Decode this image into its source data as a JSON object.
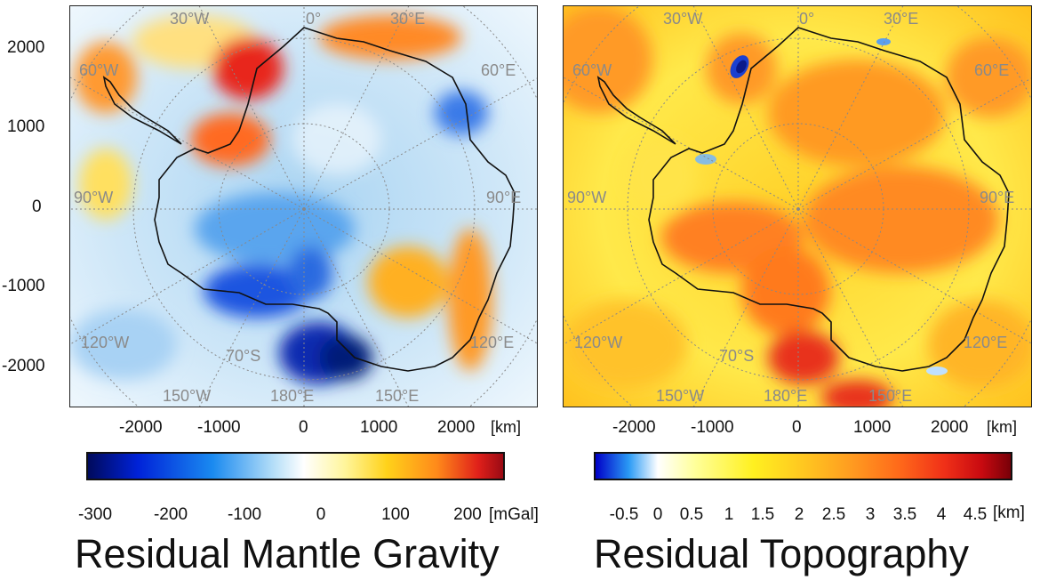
{
  "y_axis": {
    "ticks": [
      "2000",
      "1000",
      "0",
      "-1000",
      "-2000"
    ]
  },
  "panels": [
    {
      "id": "gravity",
      "title": "Residual Mantle Gravity",
      "x_ticks": [
        "-2000",
        "-1000",
        "0",
        "1000",
        "2000"
      ],
      "x_unit": "[km]",
      "grid_labels": {
        "w30": "30°W",
        "zero": "0°",
        "e30": "30°E",
        "w60": "60°W",
        "e60": "60°E",
        "w90": "90°W",
        "e90": "90°E",
        "w120": "120°W",
        "e120": "120°E",
        "lat70": "70°S",
        "w150": "150°W",
        "e180": "180°E",
        "e150": "150°E"
      },
      "colorbar": {
        "ticks": [
          "-300",
          "-200",
          "-100",
          "0",
          "100",
          "200"
        ],
        "unit": "[mGal]",
        "colors": [
          "#000a5c",
          "#0022d8",
          "#1a8af0",
          "#b8e0f8",
          "#ffffff",
          "#fff59a",
          "#ffd21a",
          "#ff8a1a",
          "#e0201a",
          "#9a0a14"
        ]
      },
      "dominant_colors": {
        "background": "#d8ecf8",
        "positive": "#ff7020",
        "negative": "#1565e0"
      }
    },
    {
      "id": "topography",
      "title": "Residual Topography",
      "x_ticks": [
        "-2000",
        "-1000",
        "0",
        "1000",
        "2000"
      ],
      "x_unit": "[km]",
      "grid_labels": {
        "w30": "30°W",
        "zero": "0°",
        "e30": "30°E",
        "w60": "60°W",
        "e60": "60°E",
        "w90": "90°W",
        "e90": "90°E",
        "w120": "120°W",
        "e120": "120°E",
        "lat70": "70°S",
        "w150": "150°W",
        "e180": "180°E",
        "e150": "150°E"
      },
      "colorbar": {
        "ticks": [
          "-0.5",
          "0",
          "0.5",
          "1",
          "1.5",
          "2",
          "2.5",
          "3",
          "3.5",
          "4",
          "4.5"
        ],
        "unit": "[km]",
        "colors": [
          "#0000c8",
          "#2a9af5",
          "#ffffff",
          "#ffff9a",
          "#fff020",
          "#ffc020",
          "#ff9a20",
          "#ff6a1a",
          "#f03018",
          "#c80a10",
          "#780008"
        ]
      },
      "dominant_colors": {
        "background": "#ffe030",
        "positive": "#ff8a25",
        "negative": "#1a4ad8"
      }
    }
  ]
}
